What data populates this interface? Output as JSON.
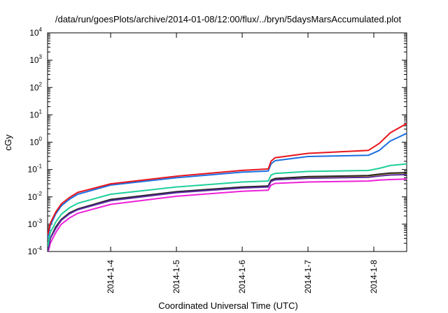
{
  "chart_data": {
    "type": "line",
    "title": "/data/run/goesPlots/archive/2014-01-08/12:00/flux/../bryn/5daysMarsAccumulated.plot",
    "xlabel": "Coordinated Universal Time (UTC)",
    "ylabel": "cGy",
    "yscale": "log",
    "ylim_exponents": [
      -4,
      4
    ],
    "y_tick_base": "10",
    "y_tick_exponents": [
      "-4",
      "-3",
      "-2",
      "-1",
      "0",
      "1",
      "2",
      "3",
      "4"
    ],
    "xlim": [
      "2014-01-03 01:00",
      "2014-01-08 12:00"
    ],
    "x_ticks": [
      {
        "date": "2014-01-04",
        "label": "2014-1-4"
      },
      {
        "date": "2014-01-05",
        "label": "2014-1-5"
      },
      {
        "date": "2014-01-06",
        "label": "2014-1-6"
      },
      {
        "date": "2014-01-07",
        "label": "2014-1-7"
      },
      {
        "date": "2014-01-08",
        "label": "2014-1-8"
      }
    ],
    "grid": false,
    "legend": "none",
    "x": [
      "2014-01-03 01:00",
      "2014-01-03 02:00",
      "2014-01-03 04:00",
      "2014-01-03 06:00",
      "2014-01-03 09:00",
      "2014-01-03 12:00",
      "2014-01-04 00:00",
      "2014-01-05 00:00",
      "2014-01-06 00:00",
      "2014-01-06 09:30",
      "2014-01-06 10:30",
      "2014-01-06 12:00",
      "2014-01-07 00:00",
      "2014-01-07 22:00",
      "2014-01-08 02:00",
      "2014-01-08 06:00",
      "2014-01-08 12:00"
    ],
    "series": [
      {
        "color": "#e8141c",
        "values": [
          0.0004,
          0.0011,
          0.0028,
          0.0055,
          0.0095,
          0.0145,
          0.03,
          0.057,
          0.093,
          0.105,
          0.2,
          0.27,
          0.39,
          0.5,
          0.9,
          2.2,
          4.8
        ]
      },
      {
        "color": "#1a6fe0",
        "values": [
          0.0003,
          0.0009,
          0.0024,
          0.0047,
          0.0082,
          0.0125,
          0.027,
          0.05,
          0.08,
          0.088,
          0.16,
          0.21,
          0.3,
          0.33,
          0.5,
          1.1,
          2.1
        ]
      },
      {
        "color": "#1fcf9a",
        "values": [
          0.00015,
          0.0005,
          0.0012,
          0.0023,
          0.004,
          0.0058,
          0.0125,
          0.023,
          0.035,
          0.038,
          0.062,
          0.072,
          0.085,
          0.092,
          0.11,
          0.14,
          0.16
        ]
      },
      {
        "color": "#e8d000",
        "values": [
          0.0001,
          0.0003,
          0.0008,
          0.0015,
          0.0026,
          0.0036,
          0.0078,
          0.015,
          0.022,
          0.024,
          0.04,
          0.046,
          0.053,
          0.058,
          0.066,
          0.072,
          0.075
        ]
      },
      {
        "color": "#222222",
        "values": [
          0.0001,
          0.0003,
          0.0008,
          0.0015,
          0.0026,
          0.0036,
          0.008,
          0.0154,
          0.023,
          0.025,
          0.041,
          0.047,
          0.055,
          0.06,
          0.068,
          0.074,
          0.077
        ]
      },
      {
        "color": "#5a2aa0",
        "values": [
          0.0001,
          0.0003,
          0.0007,
          0.0014,
          0.0024,
          0.0034,
          0.0073,
          0.0142,
          0.021,
          0.023,
          0.037,
          0.042,
          0.048,
          0.052,
          0.058,
          0.063,
          0.065
        ]
      },
      {
        "color": "#ee20d8",
        "values": [
          8e-05,
          0.0002,
          0.0005,
          0.001,
          0.0017,
          0.0025,
          0.0053,
          0.0105,
          0.016,
          0.0175,
          0.027,
          0.031,
          0.035,
          0.038,
          0.041,
          0.043,
          0.045
        ]
      }
    ]
  }
}
